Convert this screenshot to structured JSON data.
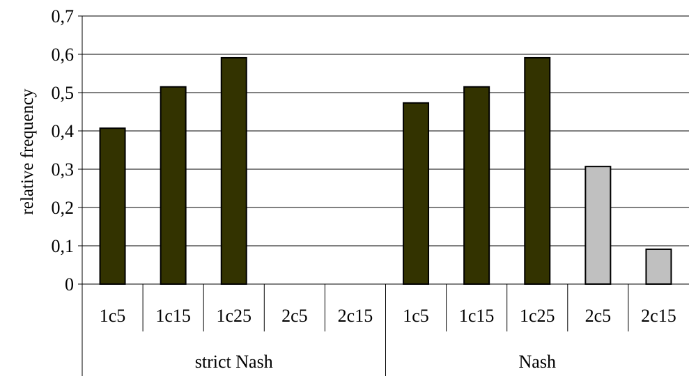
{
  "chart_data": {
    "type": "bar",
    "ylabel": "relative frequency",
    "ylim": [
      0,
      0.7
    ],
    "yticks": [
      {
        "value": 0,
        "label": "0"
      },
      {
        "value": 0.1,
        "label": "0,1"
      },
      {
        "value": 0.2,
        "label": "0,2"
      },
      {
        "value": 0.3,
        "label": "0,3"
      },
      {
        "value": 0.4,
        "label": "0,4"
      },
      {
        "value": 0.5,
        "label": "0,5"
      },
      {
        "value": 0.6,
        "label": "0,6"
      },
      {
        "value": 0.7,
        "label": "0,7"
      }
    ],
    "grid": true,
    "legend": "none",
    "groups": [
      {
        "label": "strict Nash",
        "categories": [
          "1c5",
          "1c15",
          "1c25",
          "2c5",
          "2c15"
        ]
      },
      {
        "label": "Nash",
        "categories": [
          "1c5",
          "1c15",
          "1c25",
          "2c5",
          "2c15"
        ]
      }
    ],
    "categories": [
      "1c5",
      "1c15",
      "1c25",
      "2c5",
      "2c15",
      "1c5",
      "1c15",
      "1c25",
      "2c5",
      "2c15"
    ],
    "values": [
      0.407,
      0.515,
      0.591,
      0,
      0,
      0.473,
      0.515,
      0.591,
      0.307,
      0.091
    ],
    "bar_colors": [
      "#333300",
      "#333300",
      "#333300",
      "#c0c0c0",
      "#c0c0c0",
      "#333300",
      "#333300",
      "#333300",
      "#c0c0c0",
      "#c0c0c0"
    ]
  }
}
